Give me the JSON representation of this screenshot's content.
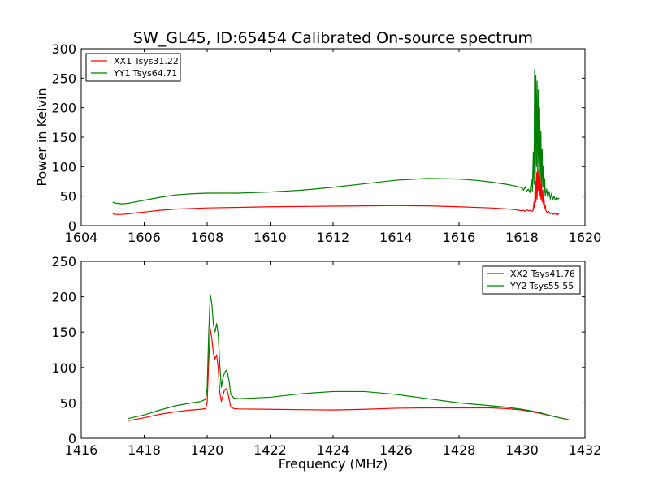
{
  "title": "SW_GL45, ID:65454 Calibrated On-source spectrum",
  "chart_data": [
    {
      "type": "line",
      "ylabel": "Power in Kelvin",
      "xlabel": "",
      "xlim": [
        1604,
        1620
      ],
      "ylim": [
        0,
        300
      ],
      "xticks": [
        1604,
        1606,
        1608,
        1610,
        1612,
        1614,
        1616,
        1618,
        1620
      ],
      "yticks": [
        0,
        50,
        100,
        150,
        200,
        250,
        300
      ],
      "legend_position": "upper-left",
      "series": [
        {
          "name": "XX1 Tsys31.22",
          "color": "#ff0000",
          "points": [
            [
              1605.0,
              20
            ],
            [
              1605.1,
              19
            ],
            [
              1605.3,
              19
            ],
            [
              1605.5,
              20
            ],
            [
              1605.8,
              22
            ],
            [
              1606.0,
              23
            ],
            [
              1606.5,
              26
            ],
            [
              1607.0,
              28
            ],
            [
              1607.5,
              29
            ],
            [
              1608.0,
              30
            ],
            [
              1609.0,
              31
            ],
            [
              1610.0,
              32
            ],
            [
              1611.0,
              32.5
            ],
            [
              1612.0,
              33
            ],
            [
              1613.0,
              33.5
            ],
            [
              1614.0,
              34
            ],
            [
              1615.0,
              33.5
            ],
            [
              1616.0,
              32
            ],
            [
              1617.0,
              30
            ],
            [
              1617.6,
              28
            ],
            [
              1617.8,
              27
            ],
            [
              1617.9,
              26
            ],
            [
              1618.0,
              25
            ],
            [
              1618.05,
              26
            ],
            [
              1618.1,
              24
            ],
            [
              1618.15,
              27
            ],
            [
              1618.2,
              25
            ],
            [
              1618.25,
              26
            ],
            [
              1618.3,
              24
            ],
            [
              1618.35,
              25
            ],
            [
              1618.38,
              40
            ],
            [
              1618.4,
              30
            ],
            [
              1618.42,
              75
            ],
            [
              1618.44,
              40
            ],
            [
              1618.46,
              90
            ],
            [
              1618.48,
              45
            ],
            [
              1618.5,
              100
            ],
            [
              1618.52,
              60
            ],
            [
              1618.54,
              95
            ],
            [
              1618.56,
              50
            ],
            [
              1618.58,
              85
            ],
            [
              1618.6,
              45
            ],
            [
              1618.62,
              70
            ],
            [
              1618.64,
              40
            ],
            [
              1618.66,
              60
            ],
            [
              1618.68,
              35
            ],
            [
              1618.7,
              45
            ],
            [
              1618.72,
              30
            ],
            [
              1618.74,
              35
            ],
            [
              1618.76,
              25
            ],
            [
              1618.8,
              22
            ],
            [
              1618.85,
              24
            ],
            [
              1618.9,
              20
            ],
            [
              1618.95,
              22
            ],
            [
              1619.0,
              19
            ],
            [
              1619.05,
              21
            ],
            [
              1619.1,
              18
            ],
            [
              1619.15,
              20
            ],
            [
              1619.18,
              19
            ]
          ]
        },
        {
          "name": "YY1 Tsys64.71",
          "color": "#008000",
          "points": [
            [
              1605.0,
              40
            ],
            [
              1605.1,
              38
            ],
            [
              1605.3,
              37
            ],
            [
              1605.5,
              38
            ],
            [
              1605.8,
              41
            ],
            [
              1606.0,
              43
            ],
            [
              1606.5,
              48
            ],
            [
              1607.0,
              52
            ],
            [
              1607.5,
              54
            ],
            [
              1608.0,
              55
            ],
            [
              1609.0,
              55
            ],
            [
              1610.0,
              57
            ],
            [
              1611.0,
              60
            ],
            [
              1612.0,
              65
            ],
            [
              1613.0,
              71
            ],
            [
              1614.0,
              77
            ],
            [
              1615.0,
              80
            ],
            [
              1616.0,
              79
            ],
            [
              1616.5,
              77
            ],
            [
              1617.0,
              74
            ],
            [
              1617.5,
              70
            ],
            [
              1617.8,
              67
            ],
            [
              1618.0,
              64
            ],
            [
              1618.05,
              60
            ],
            [
              1618.1,
              66
            ],
            [
              1618.15,
              58
            ],
            [
              1618.2,
              62
            ],
            [
              1618.25,
              56
            ],
            [
              1618.3,
              78
            ],
            [
              1618.33,
              58
            ],
            [
              1618.36,
              125
            ],
            [
              1618.38,
              70
            ],
            [
              1618.4,
              265
            ],
            [
              1618.42,
              90
            ],
            [
              1618.44,
              255
            ],
            [
              1618.46,
              100
            ],
            [
              1618.48,
              245
            ],
            [
              1618.5,
              90
            ],
            [
              1618.52,
              230
            ],
            [
              1618.54,
              100
            ],
            [
              1618.56,
              200
            ],
            [
              1618.58,
              80
            ],
            [
              1618.6,
              160
            ],
            [
              1618.62,
              70
            ],
            [
              1618.64,
              130
            ],
            [
              1618.66,
              65
            ],
            [
              1618.68,
              100
            ],
            [
              1618.7,
              55
            ],
            [
              1618.72,
              80
            ],
            [
              1618.74,
              50
            ],
            [
              1618.78,
              62
            ],
            [
              1618.82,
              48
            ],
            [
              1618.86,
              58
            ],
            [
              1618.9,
              45
            ],
            [
              1618.94,
              55
            ],
            [
              1618.98,
              44
            ],
            [
              1619.02,
              50
            ],
            [
              1619.06,
              43
            ],
            [
              1619.1,
              48
            ],
            [
              1619.15,
              45
            ],
            [
              1619.18,
              47
            ]
          ]
        }
      ]
    },
    {
      "type": "line",
      "ylabel": "",
      "xlabel": "Frequency (MHz)",
      "xlim": [
        1416,
        1432
      ],
      "ylim": [
        0,
        250
      ],
      "xticks": [
        1416,
        1418,
        1420,
        1422,
        1424,
        1426,
        1428,
        1430,
        1432
      ],
      "yticks": [
        0,
        50,
        100,
        150,
        200,
        250
      ],
      "legend_position": "upper-right",
      "series": [
        {
          "name": "XX2 Tsys41.76",
          "color": "#ff0000",
          "points": [
            [
              1417.5,
              25
            ],
            [
              1418.0,
              29
            ],
            [
              1418.5,
              34
            ],
            [
              1419.0,
              37.5
            ],
            [
              1419.5,
              40
            ],
            [
              1419.8,
              41
            ],
            [
              1419.95,
              42
            ],
            [
              1420.0,
              50
            ],
            [
              1420.05,
              110
            ],
            [
              1420.1,
              155
            ],
            [
              1420.15,
              140
            ],
            [
              1420.2,
              120
            ],
            [
              1420.25,
              112
            ],
            [
              1420.3,
              118
            ],
            [
              1420.35,
              100
            ],
            [
              1420.4,
              65
            ],
            [
              1420.45,
              52
            ],
            [
              1420.5,
              60
            ],
            [
              1420.55,
              68
            ],
            [
              1420.6,
              70
            ],
            [
              1420.65,
              66
            ],
            [
              1420.7,
              55
            ],
            [
              1420.75,
              44
            ],
            [
              1420.85,
              42
            ],
            [
              1421.0,
              41.5
            ],
            [
              1422.0,
              41
            ],
            [
              1423.0,
              40.5
            ],
            [
              1424.0,
              40
            ],
            [
              1425.0,
              41
            ],
            [
              1426.0,
              42.5
            ],
            [
              1427.0,
              43
            ],
            [
              1428.0,
              43
            ],
            [
              1429.0,
              43
            ],
            [
              1429.5,
              42
            ],
            [
              1430.0,
              40
            ],
            [
              1430.5,
              36
            ],
            [
              1431.0,
              31
            ],
            [
              1431.5,
              26
            ]
          ]
        },
        {
          "name": "YY2 Tsys55.55",
          "color": "#008000",
          "points": [
            [
              1417.5,
              28
            ],
            [
              1418.0,
              33
            ],
            [
              1418.5,
              40
            ],
            [
              1419.0,
              46
            ],
            [
              1419.5,
              50
            ],
            [
              1419.8,
              52
            ],
            [
              1419.95,
              55
            ],
            [
              1420.0,
              70
            ],
            [
              1420.05,
              150
            ],
            [
              1420.1,
              203
            ],
            [
              1420.15,
              190
            ],
            [
              1420.2,
              160
            ],
            [
              1420.25,
              150
            ],
            [
              1420.3,
              162
            ],
            [
              1420.35,
              148
            ],
            [
              1420.4,
              105
            ],
            [
              1420.45,
              72
            ],
            [
              1420.5,
              85
            ],
            [
              1420.55,
              92
            ],
            [
              1420.6,
              96
            ],
            [
              1420.65,
              92
            ],
            [
              1420.7,
              80
            ],
            [
              1420.75,
              62
            ],
            [
              1420.85,
              57
            ],
            [
              1421.0,
              56
            ],
            [
              1422.0,
              58
            ],
            [
              1423.0,
              63
            ],
            [
              1424.0,
              66
            ],
            [
              1425.0,
              66
            ],
            [
              1426.0,
              62
            ],
            [
              1427.0,
              56
            ],
            [
              1428.0,
              50
            ],
            [
              1429.0,
              46
            ],
            [
              1429.5,
              44
            ],
            [
              1430.0,
              41
            ],
            [
              1430.5,
              37
            ],
            [
              1431.0,
              31
            ],
            [
              1431.5,
              26
            ]
          ]
        }
      ]
    }
  ]
}
